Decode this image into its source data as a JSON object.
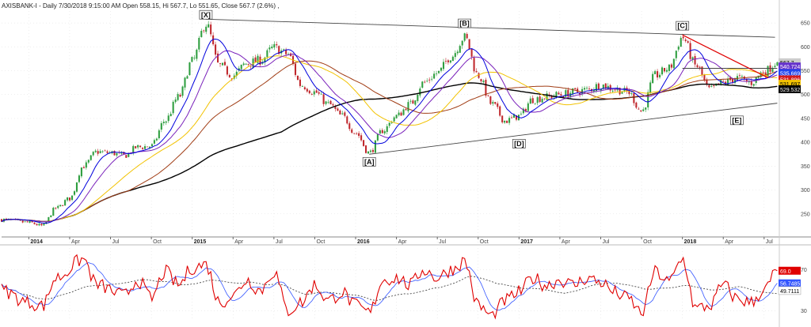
{
  "header": {
    "text": "AXISBANK-I - Daily 7/30/2018 9:15:00 AM Open 558.15, Hi 567.7, Lo 551.65, Close 567.7 (2.6%) ,"
  },
  "colors": {
    "bg": "#ffffff",
    "grid": "#dddddd",
    "candle_up": "#2e9e3f",
    "candle_down": "#c0282d",
    "ma_fast": "#0000dd",
    "ma_medium": "#7a22bb",
    "ma_yellow": "#f2c200",
    "ma_brown": "#a03c14",
    "ma_long": "#000000",
    "trendline": "#444444",
    "trendline_red": "#e00000",
    "rsi": "#e00000",
    "rsi_signal": "#3355ff",
    "rsi_avg": "#333333"
  },
  "chart_data": [
    {
      "type": "candlestick",
      "symbol": "AXISBANK-I",
      "x_tick_labels": [
        "2014",
        "Apr",
        "Jul",
        "Oct",
        "2015",
        "Apr",
        "Jul",
        "Oct",
        "2016",
        "Apr",
        "Jul",
        "Oct",
        "2017",
        "Apr",
        "Jul",
        "Oct",
        "2018",
        "Apr",
        "Jul"
      ],
      "x_tick_dates": [
        "2014-01",
        "2014-04",
        "2014-07",
        "2014-10",
        "2015-01",
        "2015-04",
        "2015-07",
        "2015-10",
        "2016-01",
        "2016-04",
        "2016-07",
        "2016-10",
        "2017-01",
        "2017-04",
        "2017-07",
        "2017-10",
        "2018-01",
        "2018-04",
        "2018-07"
      ],
      "xlim": [
        "2013-11",
        "2018-08"
      ],
      "y_ticks": [
        250,
        300,
        350,
        400,
        450,
        500,
        550,
        600,
        650
      ],
      "ylim": [
        205,
        675
      ],
      "price_path": [
        {
          "x": "2013-11",
          "y": 238
        },
        {
          "x": "2014-01",
          "y": 232
        },
        {
          "x": "2014-02",
          "y": 225
        },
        {
          "x": "2014-03",
          "y": 262
        },
        {
          "x": "2014-04",
          "y": 282
        },
        {
          "x": "2014-05",
          "y": 350
        },
        {
          "x": "2014-06",
          "y": 380
        },
        {
          "x": "2014-07",
          "y": 378
        },
        {
          "x": "2014-08",
          "y": 372
        },
        {
          "x": "2014-09",
          "y": 390
        },
        {
          "x": "2014-10",
          "y": 392
        },
        {
          "x": "2014-11",
          "y": 445
        },
        {
          "x": "2014-12",
          "y": 495
        },
        {
          "x": "2015-01",
          "y": 570
        },
        {
          "x": "2015-02",
          "y": 648
        },
        {
          "x": "2015-03",
          "y": 560
        },
        {
          "x": "2015-04",
          "y": 540
        },
        {
          "x": "2015-05",
          "y": 565
        },
        {
          "x": "2015-06",
          "y": 572
        },
        {
          "x": "2015-07",
          "y": 598
        },
        {
          "x": "2015-08",
          "y": 585
        },
        {
          "x": "2015-09",
          "y": 520
        },
        {
          "x": "2015-10",
          "y": 505
        },
        {
          "x": "2015-11",
          "y": 480
        },
        {
          "x": "2015-12",
          "y": 455
        },
        {
          "x": "2016-01",
          "y": 420
        },
        {
          "x": "2016-02",
          "y": 378
        },
        {
          "x": "2016-03",
          "y": 425
        },
        {
          "x": "2016-04",
          "y": 455
        },
        {
          "x": "2016-05",
          "y": 480
        },
        {
          "x": "2016-06",
          "y": 525
        },
        {
          "x": "2016-07",
          "y": 545
        },
        {
          "x": "2016-08",
          "y": 580
        },
        {
          "x": "2016-09",
          "y": 620
        },
        {
          "x": "2016-10",
          "y": 540
        },
        {
          "x": "2016-11",
          "y": 480
        },
        {
          "x": "2016-12",
          "y": 445
        },
        {
          "x": "2017-01",
          "y": 455
        },
        {
          "x": "2017-02",
          "y": 490
        },
        {
          "x": "2017-03",
          "y": 495
        },
        {
          "x": "2017-04",
          "y": 500
        },
        {
          "x": "2017-05",
          "y": 505
        },
        {
          "x": "2017-06",
          "y": 510
        },
        {
          "x": "2017-07",
          "y": 520
        },
        {
          "x": "2017-08",
          "y": 512
        },
        {
          "x": "2017-09",
          "y": 505
        },
        {
          "x": "2017-10",
          "y": 465
        },
        {
          "x": "2017-11",
          "y": 540
        },
        {
          "x": "2017-12",
          "y": 555
        },
        {
          "x": "2018-01",
          "y": 620
        },
        {
          "x": "2018-02",
          "y": 560
        },
        {
          "x": "2018-03",
          "y": 510
        },
        {
          "x": "2018-04",
          "y": 525
        },
        {
          "x": "2018-05",
          "y": 535
        },
        {
          "x": "2018-06",
          "y": 525
        },
        {
          "x": "2018-07",
          "y": 548
        },
        {
          "x": "2018-07-30",
          "y": 567.7
        }
      ],
      "last_ohlc": {
        "date": "2018-07-30",
        "open": 558.15,
        "high": 567.7,
        "low": 551.65,
        "close": 567.7,
        "change_pct": 2.6
      },
      "moving_averages": [
        {
          "color_key": "ma_fast",
          "last_value_label": "540.724",
          "label_bg": "#6633cc",
          "window": 10
        },
        {
          "color_key": "ma_medium",
          "last_value_label": "535.669",
          "label_bg": "#2244ee",
          "window": 18
        },
        {
          "color_key": "ma_yellow",
          "last_value_label": "531.896",
          "label_bg": "#d41c1c",
          "window": 35
        },
        {
          "color_key": "ma_brown",
          "last_value_label": "531.697",
          "label_bg": "#f2c200",
          "window": 55
        },
        {
          "color_key": "ma_long",
          "last_value_label": "529.532",
          "label_bg": "#000000",
          "window": 120
        }
      ],
      "last_price_label": "567.7",
      "trendlines": [
        {
          "color_key": "trendline",
          "from": {
            "x": "2015-02",
            "y": 658
          },
          "to": {
            "x": "2018-07-25",
            "y": 620
          }
        },
        {
          "color_key": "trendline",
          "from": {
            "x": "2016-02",
            "y": 375
          },
          "to": {
            "x": "2018-07-30",
            "y": 482
          }
        },
        {
          "color_key": "trendline",
          "from": {
            "x": "2018-01",
            "y": 555
          },
          "to": {
            "x": "2018-07-30",
            "y": 555
          }
        },
        {
          "color_key": "trendline_red",
          "from": {
            "x": "2018-01",
            "y": 625
          },
          "to": {
            "x": "2018-07-10",
            "y": 535
          }
        }
      ],
      "wave_labels": [
        {
          "text": "[X]",
          "x": "2015-02",
          "y": 663
        },
        {
          "text": "[B]",
          "x": "2016-09",
          "y": 645
        },
        {
          "text": "[C]",
          "x": "2018-01",
          "y": 640
        },
        {
          "text": "[A]",
          "x": "2016-02",
          "y": 355
        },
        {
          "text": "[D]",
          "x": "2017-01",
          "y": 393
        },
        {
          "text": "[E]",
          "x": "2018-05",
          "y": 442
        }
      ]
    },
    {
      "type": "line",
      "name": "RSI",
      "y_ticks": [
        30,
        70
      ],
      "ylim": [
        22,
        88
      ],
      "rsi_path": [
        {
          "x": "2013-11",
          "y": 50
        },
        {
          "x": "2014-01",
          "y": 38
        },
        {
          "x": "2014-02",
          "y": 35
        },
        {
          "x": "2014-03",
          "y": 62
        },
        {
          "x": "2014-05",
          "y": 80
        },
        {
          "x": "2014-06",
          "y": 55
        },
        {
          "x": "2014-08",
          "y": 45
        },
        {
          "x": "2014-09",
          "y": 60
        },
        {
          "x": "2014-10",
          "y": 42
        },
        {
          "x": "2014-11",
          "y": 68
        },
        {
          "x": "2014-12",
          "y": 55
        },
        {
          "x": "2015-01",
          "y": 72
        },
        {
          "x": "2015-02",
          "y": 75
        },
        {
          "x": "2015-03",
          "y": 38
        },
        {
          "x": "2015-04",
          "y": 45
        },
        {
          "x": "2015-05",
          "y": 60
        },
        {
          "x": "2015-06",
          "y": 50
        },
        {
          "x": "2015-07",
          "y": 68
        },
        {
          "x": "2015-08",
          "y": 30
        },
        {
          "x": "2015-09",
          "y": 38
        },
        {
          "x": "2015-10",
          "y": 55
        },
        {
          "x": "2015-11",
          "y": 40
        },
        {
          "x": "2015-12",
          "y": 48
        },
        {
          "x": "2016-01",
          "y": 35
        },
        {
          "x": "2016-02",
          "y": 28
        },
        {
          "x": "2016-03",
          "y": 60
        },
        {
          "x": "2016-04",
          "y": 62
        },
        {
          "x": "2016-05",
          "y": 55
        },
        {
          "x": "2016-06",
          "y": 70
        },
        {
          "x": "2016-07",
          "y": 62
        },
        {
          "x": "2016-08",
          "y": 70
        },
        {
          "x": "2016-09",
          "y": 78
        },
        {
          "x": "2016-10",
          "y": 35
        },
        {
          "x": "2016-11",
          "y": 25
        },
        {
          "x": "2016-12",
          "y": 40
        },
        {
          "x": "2017-01",
          "y": 48
        },
        {
          "x": "2017-02",
          "y": 62
        },
        {
          "x": "2017-03",
          "y": 55
        },
        {
          "x": "2017-04",
          "y": 60
        },
        {
          "x": "2017-05",
          "y": 55
        },
        {
          "x": "2017-06",
          "y": 62
        },
        {
          "x": "2017-07",
          "y": 58
        },
        {
          "x": "2017-08",
          "y": 48
        },
        {
          "x": "2017-09",
          "y": 42
        },
        {
          "x": "2017-10",
          "y": 28
        },
        {
          "x": "2017-11",
          "y": 68
        },
        {
          "x": "2017-12",
          "y": 58
        },
        {
          "x": "2018-01",
          "y": 80
        },
        {
          "x": "2018-02",
          "y": 32
        },
        {
          "x": "2018-03",
          "y": 35
        },
        {
          "x": "2018-04",
          "y": 55
        },
        {
          "x": "2018-05",
          "y": 42
        },
        {
          "x": "2018-06",
          "y": 38
        },
        {
          "x": "2018-07",
          "y": 50
        },
        {
          "x": "2018-07-30",
          "y": 69
        }
      ],
      "value_labels": [
        {
          "text": "69.0",
          "color_key": "rsi",
          "label_bg": "#e00000"
        },
        {
          "text": "56.7485",
          "color_key": "rsi_signal",
          "label_bg": "#3355ff"
        },
        {
          "text": "49.7111",
          "color_key": "rsi_avg",
          "label_bg": "#ffffff"
        }
      ]
    }
  ]
}
